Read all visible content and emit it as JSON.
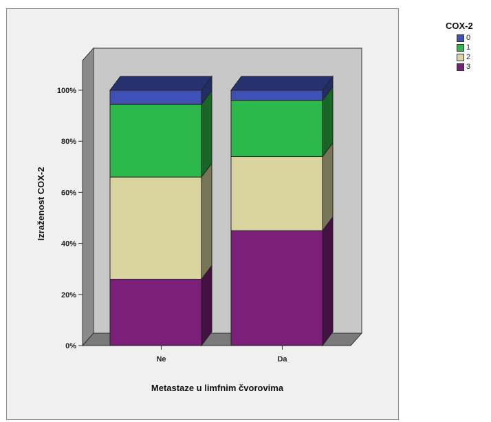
{
  "chart_data": {
    "type": "bar",
    "stacked": true,
    "percent": true,
    "categories": [
      "Ne",
      "Da"
    ],
    "xlabel": "Metastaze u limfnim čvorovima",
    "ylabel": "Izraženost COX-2",
    "ylim": [
      0,
      100
    ],
    "yticks": [
      "0%",
      "20%",
      "40%",
      "60%",
      "80%",
      "100%"
    ],
    "legend_title": "COX-2",
    "legend_position": "top-right",
    "series": [
      {
        "name": "0",
        "color": "#3f51b5",
        "values": [
          5.5,
          4
        ]
      },
      {
        "name": "1",
        "color": "#2db84b",
        "values": [
          28.5,
          22
        ]
      },
      {
        "name": "2",
        "color": "#d9d4a0",
        "values": [
          40,
          29
        ]
      },
      {
        "name": "3",
        "color": "#7b1f78",
        "values": [
          26,
          45
        ]
      }
    ]
  }
}
